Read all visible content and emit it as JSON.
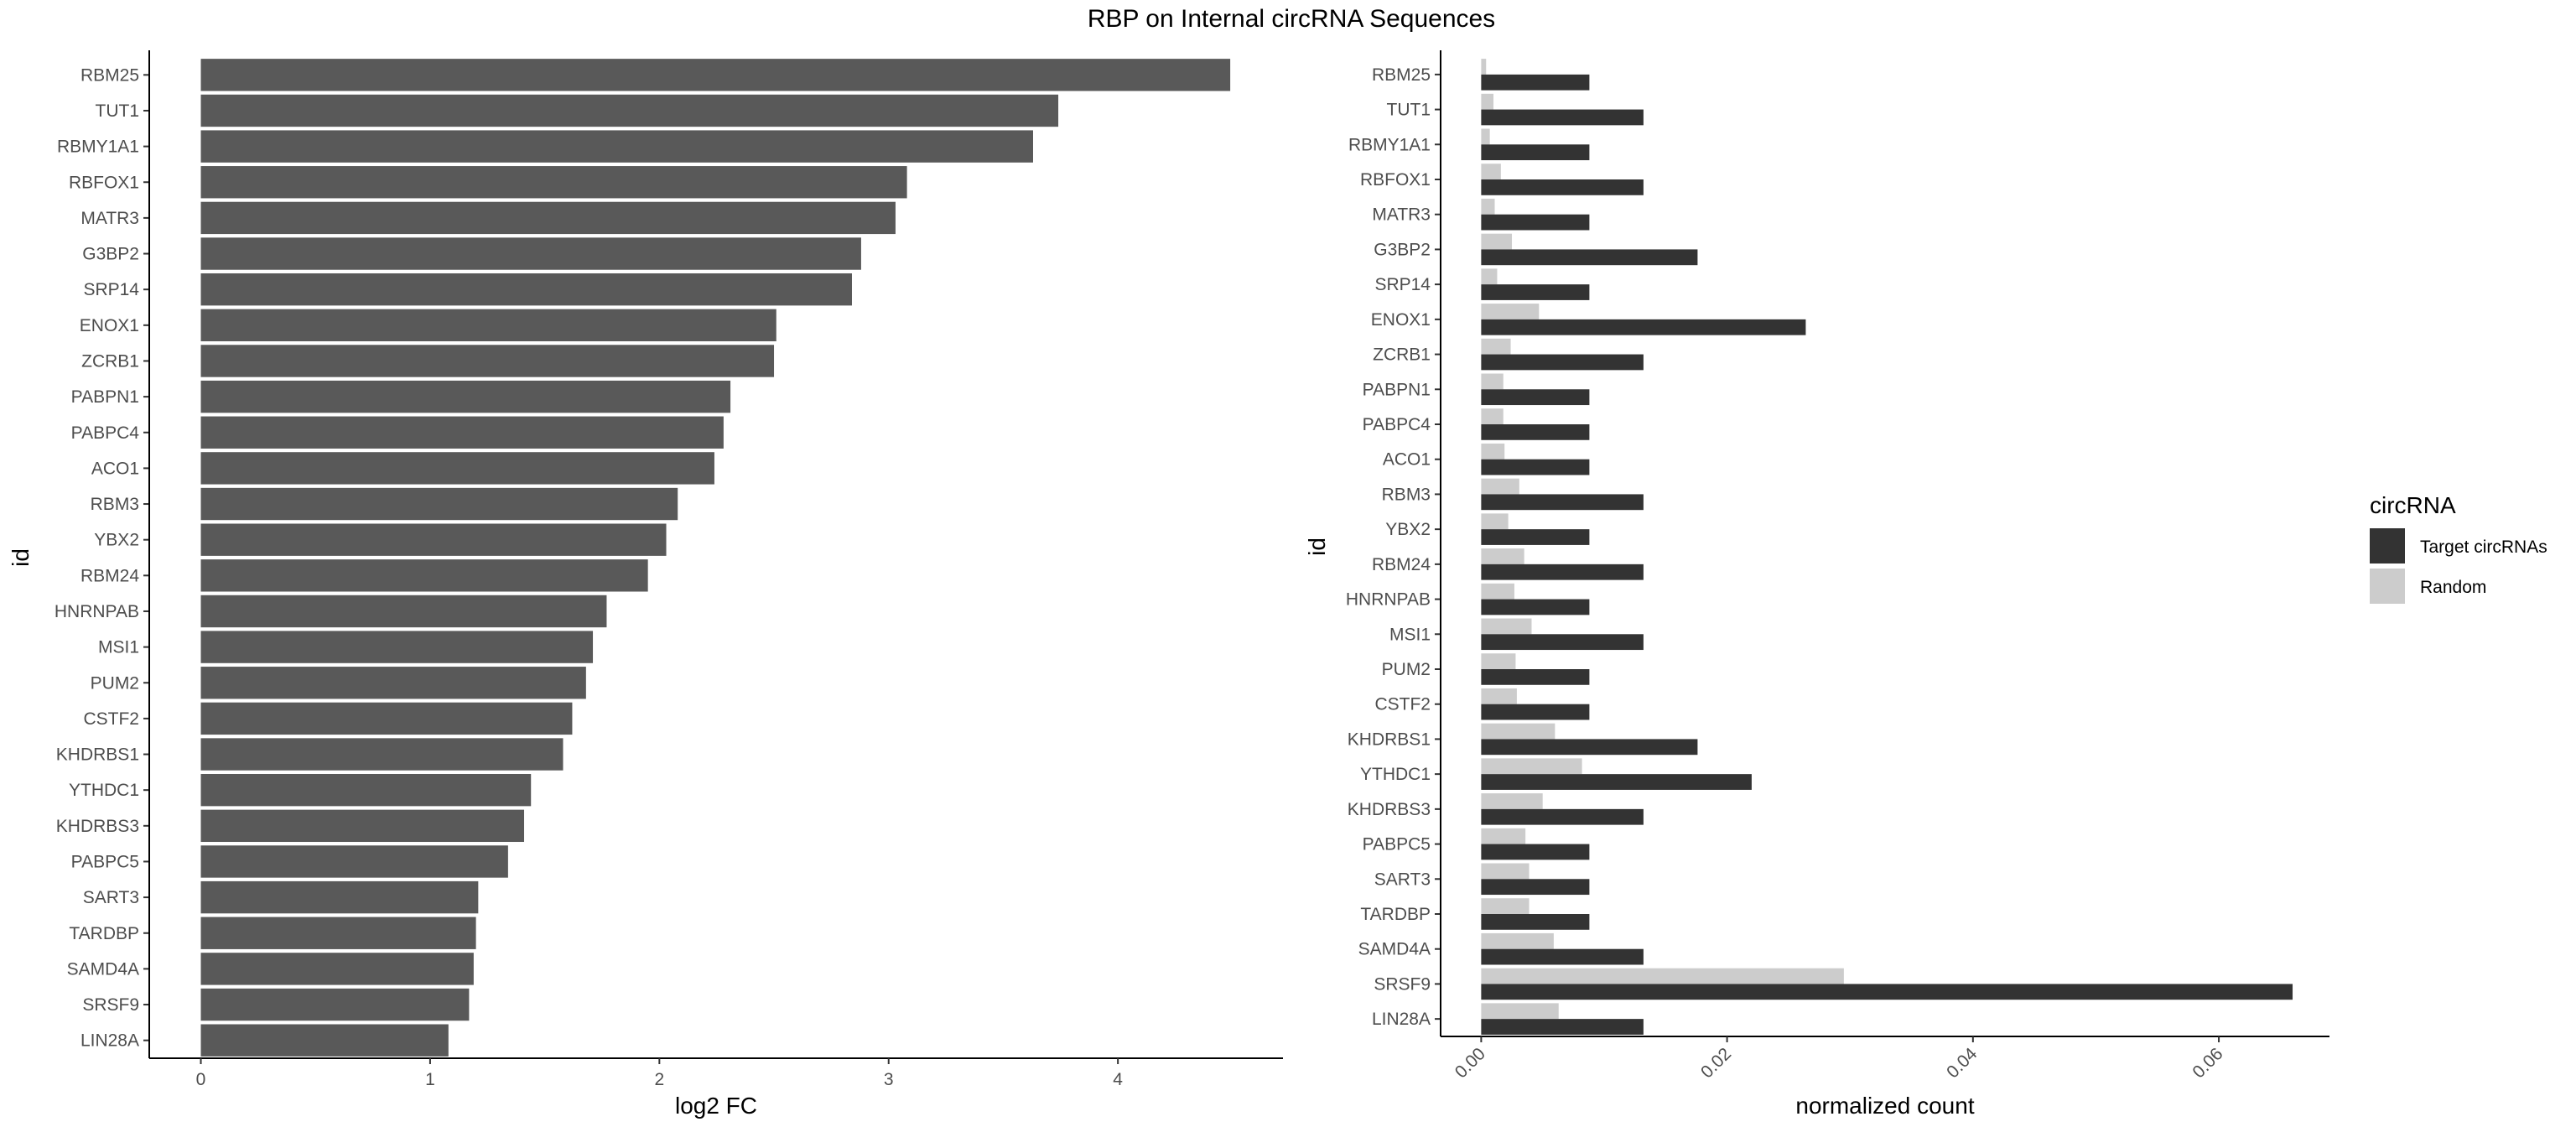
{
  "title": "RBP on Internal circRNA Sequences",
  "colors": {
    "left_bar": "#595959",
    "target": "#333333",
    "random": "#cccccc",
    "axis": "#000000",
    "tick_text": "#4d4d4d"
  },
  "chart_data": [
    {
      "type": "bar",
      "orientation": "horizontal",
      "categories": [
        "RBM25",
        "TUT1",
        "RBMY1A1",
        "RBFOX1",
        "MATR3",
        "G3BP2",
        "SRP14",
        "ENOX1",
        "ZCRB1",
        "PABPN1",
        "PABPC4",
        "ACO1",
        "RBM3",
        "YBX2",
        "RBM24",
        "HNRNPAB",
        "MSI1",
        "PUM2",
        "CSTF2",
        "KHDRBS1",
        "YTHDC1",
        "KHDRBS3",
        "PABPC5",
        "SART3",
        "TARDBP",
        "SAMD4A",
        "SRSF9",
        "LIN28A"
      ],
      "values": [
        4.49,
        3.74,
        3.63,
        3.08,
        3.03,
        2.88,
        2.84,
        2.51,
        2.5,
        2.31,
        2.28,
        2.24,
        2.08,
        2.03,
        1.95,
        1.77,
        1.71,
        1.68,
        1.62,
        1.58,
        1.44,
        1.41,
        1.34,
        1.21,
        1.2,
        1.19,
        1.17,
        1.08
      ],
      "xlabel": "log2 FC",
      "ylabel": "id",
      "xlim": [
        -0.225,
        4.72
      ],
      "xticks": [
        "0",
        "1",
        "2",
        "3",
        "4"
      ],
      "grid": false
    },
    {
      "type": "bar",
      "orientation": "horizontal",
      "grouped": true,
      "categories": [
        "RBM25",
        "TUT1",
        "RBMY1A1",
        "RBFOX1",
        "MATR3",
        "G3BP2",
        "SRP14",
        "ENOX1",
        "ZCRB1",
        "PABPN1",
        "PABPC4",
        "ACO1",
        "RBM3",
        "YBX2",
        "RBM24",
        "HNRNPAB",
        "MSI1",
        "PUM2",
        "CSTF2",
        "KHDRBS1",
        "YTHDC1",
        "KHDRBS3",
        "PABPC5",
        "SART3",
        "TARDBP",
        "SAMD4A",
        "SRSF9",
        "LIN28A"
      ],
      "series": [
        {
          "name": "Target circRNAs",
          "values": [
            0.0088,
            0.0132,
            0.0088,
            0.0132,
            0.0088,
            0.0176,
            0.0088,
            0.0264,
            0.0132,
            0.0088,
            0.0088,
            0.0088,
            0.0132,
            0.0088,
            0.0132,
            0.0088,
            0.0132,
            0.0088,
            0.0088,
            0.0176,
            0.022,
            0.0132,
            0.0088,
            0.0088,
            0.0088,
            0.0132,
            0.066,
            0.0132
          ]
        },
        {
          "name": "Random",
          "values": [
            0.0004,
            0.001,
            0.0007,
            0.0016,
            0.0011,
            0.0025,
            0.0013,
            0.0047,
            0.0024,
            0.0018,
            0.0018,
            0.0019,
            0.0031,
            0.0022,
            0.0035,
            0.0027,
            0.0041,
            0.0028,
            0.0029,
            0.006,
            0.0082,
            0.005,
            0.0036,
            0.0039,
            0.0039,
            0.0059,
            0.0295,
            0.0063
          ]
        }
      ],
      "xlabel": "normalized count",
      "ylabel": "id",
      "xlim": [
        -0.0033,
        0.069
      ],
      "xticks": [
        "0.00",
        "0.02",
        "0.04",
        "0.06"
      ],
      "legend": {
        "title": "circRNA",
        "position": "right"
      },
      "grid": false
    }
  ]
}
